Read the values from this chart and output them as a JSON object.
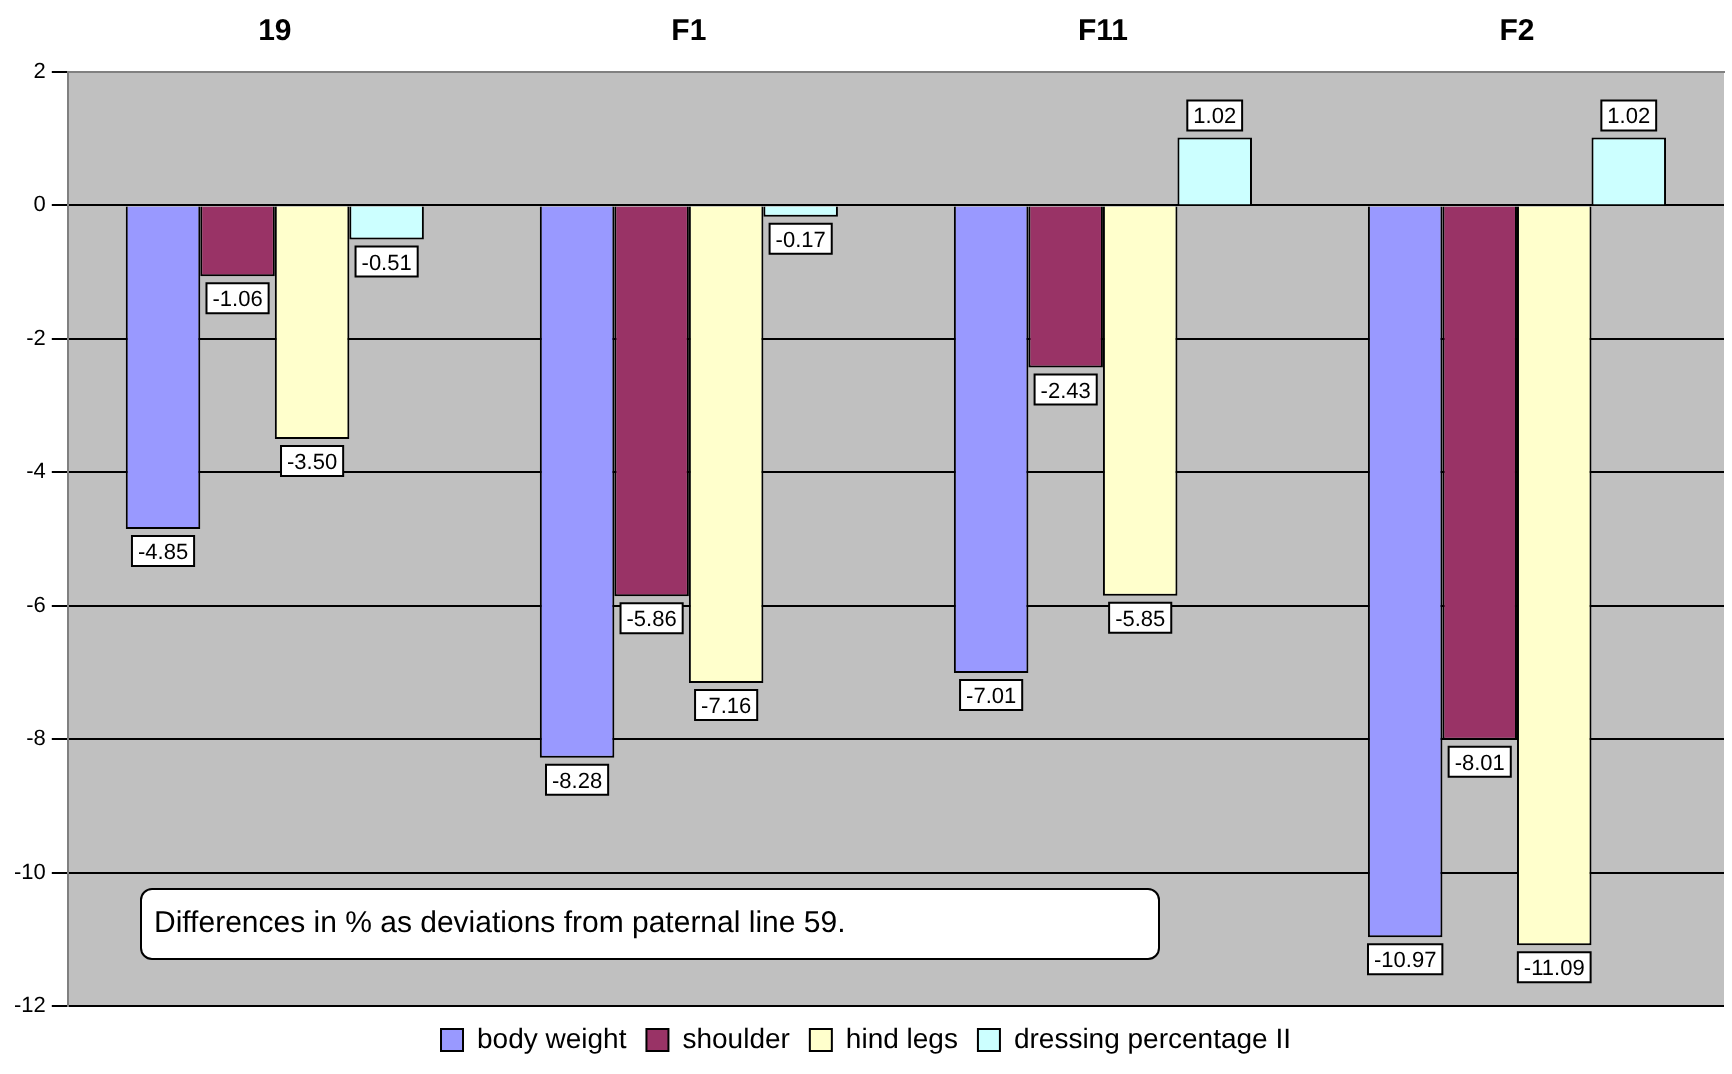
{
  "chart_data": {
    "type": "bar",
    "categories": [
      "19",
      "F1",
      "F11",
      "F2"
    ],
    "series": [
      {
        "name": "body weight",
        "color": "#9999ff",
        "values": [
          -4.85,
          -8.28,
          -7.01,
          -10.97
        ],
        "value_labels": [
          "-4.85",
          "-8.28",
          "-7.01",
          "-10.97"
        ]
      },
      {
        "name": "shoulder",
        "color": "#993366",
        "values": [
          -1.06,
          -5.86,
          -2.43,
          -8.01
        ],
        "value_labels": [
          "-1.06",
          "-5.86",
          "-2.43",
          "-8.01"
        ]
      },
      {
        "name": "hind legs",
        "color": "#ffffcc",
        "values": [
          -3.5,
          -7.16,
          -5.85,
          -11.09
        ],
        "value_labels": [
          "-3.50",
          "-7.16",
          "-5.85",
          "-11.09"
        ]
      },
      {
        "name": "dressing percentage II",
        "color": "#ccffff",
        "values": [
          -0.51,
          -0.17,
          1.02,
          1.02
        ],
        "value_labels": [
          "-0.51",
          "-0.17",
          "1.02",
          "1.02"
        ]
      }
    ],
    "ylim": [
      -12,
      2
    ],
    "yticks": [
      -12,
      -10,
      -8,
      -6,
      -4,
      -2,
      0,
      2
    ],
    "grid": "y",
    "legend": "bottom",
    "annotations": [
      "Differences in % as deviations from paternal line 59."
    ]
  }
}
